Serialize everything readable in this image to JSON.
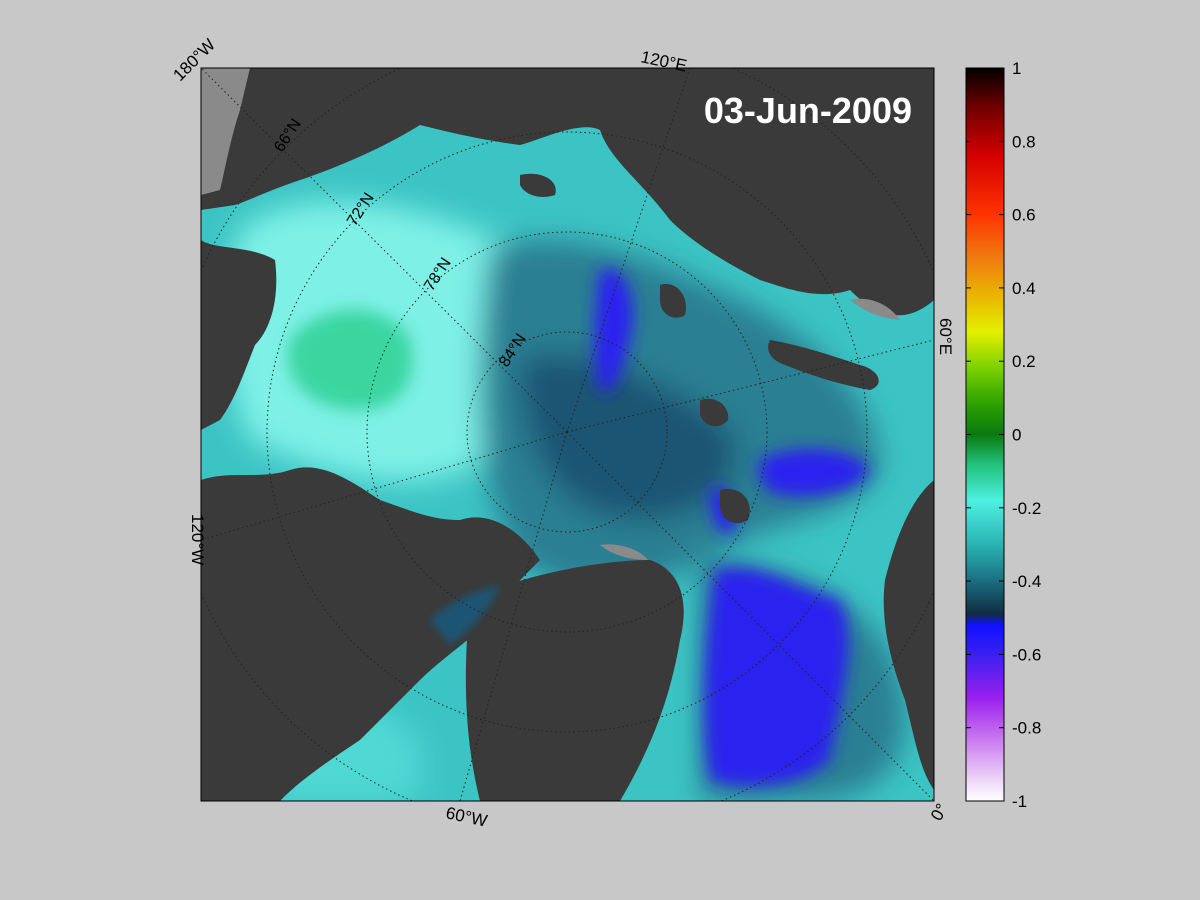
{
  "date_label": "03-Jun-2009",
  "longitude_labels": {
    "lon_180w": "180°W",
    "lon_120e": "120°E",
    "lon_60e": "60°E",
    "lon_120w": "120°W",
    "lon_60w": "60°W",
    "lon_0": "0°"
  },
  "latitude_labels": {
    "lat_66n": "66°N",
    "lat_72n": "72°N",
    "lat_78n": "78°N",
    "lat_84n": "84°N"
  },
  "colorbar": {
    "min": -1,
    "max": 1,
    "tick_labels": [
      "1",
      "0.8",
      "0.6",
      "0.4",
      "0.2",
      "0",
      "-0.2",
      "-0.4",
      "-0.6",
      "-0.8",
      "-1"
    ]
  },
  "colors": {
    "background": "#c8c8c8",
    "land": "#3a3a3a",
    "coast_fringe": "#8a8a8a",
    "teal": "#3cc4c4",
    "light_cyan": "#7ef0e6",
    "mint": "#3ad6a0",
    "deep_blue": "#1e4a66",
    "blue_purple": "#2a24ee"
  }
}
